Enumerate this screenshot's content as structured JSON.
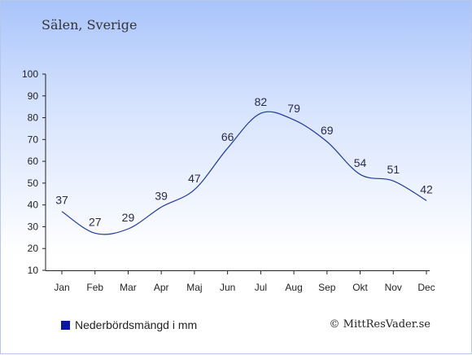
{
  "title": "Sälen, Sverige",
  "legend": {
    "label": "Nederbördsmängd i mm",
    "color": "#0a16a8"
  },
  "credit": "© MittResVader.se",
  "chart_data": {
    "type": "line",
    "categories": [
      "Jan",
      "Feb",
      "Mar",
      "Apr",
      "Maj",
      "Jun",
      "Jul",
      "Aug",
      "Sep",
      "Okt",
      "Nov",
      "Dec"
    ],
    "series": [
      {
        "name": "Nederbördsmängd i mm",
        "values": [
          37,
          27,
          29,
          39,
          47,
          66,
          82,
          79,
          69,
          54,
          51,
          42
        ],
        "color": "#1f3a9e"
      }
    ],
    "yticks": [
      10,
      20,
      30,
      40,
      50,
      60,
      70,
      80,
      90,
      100
    ],
    "ylim": [
      10,
      100
    ],
    "title": "Sälen, Sverige",
    "xlabel": "",
    "ylabel": "",
    "grid": false,
    "legend_position": "bottom-left"
  }
}
